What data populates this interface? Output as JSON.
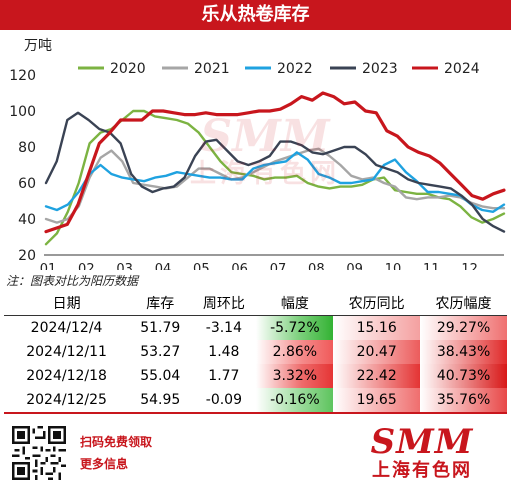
{
  "title": "乐从热卷库存",
  "note": "注：图表对比为阳历数据",
  "footer": {
    "line1": "扫码免费领取",
    "line2": "更多信息",
    "logo": "SMM",
    "logo_sub": "上海有色网"
  },
  "watermark": {
    "logo": "SMM",
    "sub": "上海有色网"
  },
  "table": {
    "headers": [
      "日期",
      "库存",
      "周环比",
      "幅度",
      "农历同比",
      "农历幅度"
    ],
    "rows": [
      [
        "2024/12/4",
        "51.79",
        "-3.14",
        "-5.72%",
        "15.16",
        "29.27%"
      ],
      [
        "2024/12/11",
        "53.27",
        "1.48",
        "2.86%",
        "20.47",
        "38.43%"
      ],
      [
        "2024/12/18",
        "55.04",
        "1.77",
        "3.32%",
        "22.42",
        "40.73%"
      ],
      [
        "2024/12/25",
        "54.95",
        "-0.09",
        "-0.16%",
        "19.65",
        "35.76%"
      ]
    ]
  },
  "chart_data": {
    "type": "line",
    "unit_label": "万吨",
    "ylim": [
      20,
      120
    ],
    "yticks": [
      20,
      40,
      60,
      80,
      100,
      120
    ],
    "xticks": [
      "01",
      "02",
      "03",
      "04",
      "05",
      "06",
      "07",
      "08",
      "09",
      "10",
      "11",
      "12"
    ],
    "grid": false,
    "legend_position": "top",
    "series": [
      {
        "name": "2020",
        "color": "#7cb342",
        "values": [
          26,
          32,
          44,
          60,
          82,
          88,
          90,
          95,
          100,
          100,
          97,
          96,
          95,
          93,
          88,
          80,
          72,
          66,
          65,
          64,
          62,
          63,
          63,
          64,
          60,
          58,
          57,
          58,
          58,
          59,
          62,
          63,
          56,
          55,
          54,
          54,
          52,
          51,
          47,
          41,
          38,
          40,
          43
        ]
      },
      {
        "name": "2021",
        "color": "#a6a6a6",
        "values": [
          40,
          38,
          40,
          47,
          63,
          74,
          78,
          72,
          60,
          59,
          58,
          57,
          58,
          63,
          68,
          68,
          65,
          62,
          63,
          66,
          69,
          72,
          74,
          76,
          78,
          79,
          75,
          70,
          64,
          62,
          63,
          60,
          58,
          52,
          51,
          52,
          52,
          53,
          52,
          49,
          47,
          46,
          46
        ]
      },
      {
        "name": "2022",
        "color": "#1fa2e0",
        "values": [
          47,
          45,
          48,
          55,
          65,
          70,
          65,
          63,
          62,
          61,
          63,
          64,
          66,
          65,
          64,
          63,
          63,
          62,
          62,
          68,
          70,
          71,
          72,
          77,
          73,
          65,
          63,
          60,
          60,
          61,
          62,
          70,
          73,
          66,
          61,
          55,
          55,
          54,
          53,
          48,
          45,
          44,
          48
        ]
      },
      {
        "name": "2023",
        "color": "#3a4354",
        "values": [
          60,
          72,
          95,
          99,
          95,
          90,
          88,
          82,
          65,
          58,
          55,
          57,
          58,
          63,
          75,
          83,
          84,
          78,
          72,
          70,
          72,
          75,
          83,
          83,
          81,
          77,
          76,
          78,
          80,
          80,
          76,
          70,
          68,
          66,
          62,
          60,
          59,
          58,
          57,
          53,
          48,
          40,
          36,
          33
        ]
      },
      {
        "name": "2024",
        "color": "#c8161d",
        "values": [
          33,
          35,
          37,
          48,
          65,
          82,
          88,
          95,
          95,
          95,
          100,
          100,
          99,
          98,
          98,
          99,
          98,
          98,
          98,
          99,
          100,
          100,
          101,
          104,
          108,
          106,
          110,
          108,
          104,
          105,
          100,
          99,
          89,
          86,
          80,
          77,
          75,
          71,
          65,
          59,
          53,
          51,
          54,
          56
        ]
      }
    ]
  }
}
